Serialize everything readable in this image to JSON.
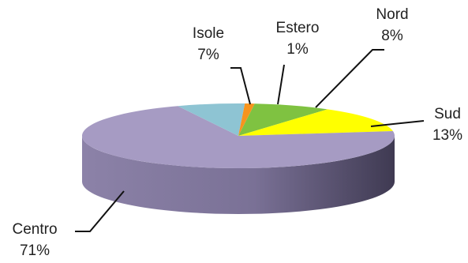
{
  "chart_data": {
    "type": "pie",
    "style": "3d",
    "title": "",
    "categories": [
      "Nord",
      "Sud",
      "Centro",
      "Isole",
      "Estero"
    ],
    "values": [
      8,
      13,
      71,
      7,
      1
    ],
    "value_labels": [
      "8%",
      "13%",
      "71%",
      "7%",
      "1%"
    ],
    "colors": [
      "#7fc241",
      "#ffff00",
      "#a69bc3",
      "#8ec4d3",
      "#f7941d"
    ],
    "legend": "none"
  }
}
